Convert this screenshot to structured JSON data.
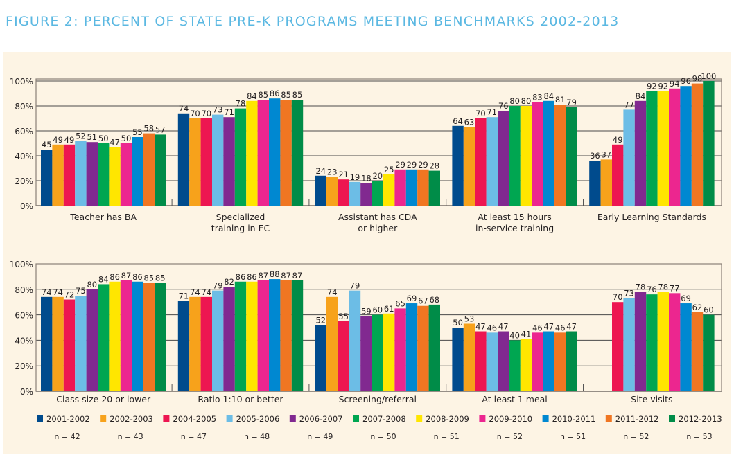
{
  "title": "FIGURE 2: PERCENT OF STATE PRE-K PROGRAMS MEETING BENCHMARKS 2002-2013",
  "legend": [
    {
      "name": "2001-2002",
      "n": "n = 42",
      "color": "#004B8D"
    },
    {
      "name": "2002-2003",
      "n": "n = 43",
      "color": "#F7A21B"
    },
    {
      "name": "2004-2005",
      "n": "n = 47",
      "color": "#ED1651"
    },
    {
      "name": "2005-2006",
      "n": "n = 48",
      "color": "#6CBDE6"
    },
    {
      "name": "2006-2007",
      "n": "n = 49",
      "color": "#812990"
    },
    {
      "name": "2007-2008",
      "n": "n = 50",
      "color": "#00A651"
    },
    {
      "name": "2008-2009",
      "n": "n = 51",
      "color": "#FFE600"
    },
    {
      "name": "2009-2010",
      "n": "n = 52",
      "color": "#EC268F"
    },
    {
      "name": "2010-2011",
      "n": "n = 51",
      "color": "#0088D1"
    },
    {
      "name": "2011-2012",
      "n": "n = 52",
      "color": "#F07622"
    },
    {
      "name": "2012-2013",
      "n": "n = 53",
      "color": "#008C48"
    }
  ],
  "chart_data": [
    {
      "type": "bar",
      "ylim": [
        0,
        100
      ],
      "yticks": [
        "0%",
        "20%",
        "40%",
        "60%",
        "80%",
        "100%"
      ],
      "grid": true,
      "legend_position": "bottom",
      "categories": [
        "Teacher has BA",
        "Specialized\ntraining in EC",
        "Assistant has CDA\nor higher",
        "At least 15 hours\nin-service training",
        "Early Learning Standards"
      ],
      "series_values": [
        [
          45,
          49,
          49,
          52,
          51,
          50,
          47,
          50,
          55,
          58,
          57
        ],
        [
          74,
          70,
          70,
          73,
          71,
          78,
          84,
          85,
          86,
          85,
          85
        ],
        [
          24,
          23,
          21,
          19,
          18,
          20,
          25,
          29,
          29,
          29,
          28
        ],
        [
          64,
          63,
          70,
          71,
          76,
          80,
          80,
          83,
          84,
          81,
          79
        ],
        [
          36,
          37,
          49,
          77,
          84,
          92,
          92,
          94,
          96,
          98,
          100
        ]
      ]
    },
    {
      "type": "bar",
      "ylim": [
        0,
        100
      ],
      "yticks": [
        "0%",
        "20%",
        "40%",
        "60%",
        "80%",
        "100%"
      ],
      "grid": true,
      "legend_position": "bottom",
      "categories": [
        "Class size 20 or lower",
        "Ratio 1:10 or better",
        "Screening/referral",
        "At least 1 meal",
        "Site visits"
      ],
      "series_values": [
        [
          74,
          74,
          72,
          75,
          80,
          84,
          86,
          87,
          86,
          85,
          85
        ],
        [
          71,
          74,
          74,
          79,
          82,
          86,
          86,
          87,
          88,
          87,
          87
        ],
        [
          52,
          74,
          55,
          79,
          59,
          60,
          61,
          65,
          69,
          67,
          68
        ],
        [
          50,
          53,
          47,
          46,
          47,
          40,
          41,
          46,
          47,
          46,
          47
        ],
        [
          null,
          null,
          70,
          73,
          78,
          76,
          78,
          77,
          69,
          62,
          60
        ]
      ]
    }
  ]
}
